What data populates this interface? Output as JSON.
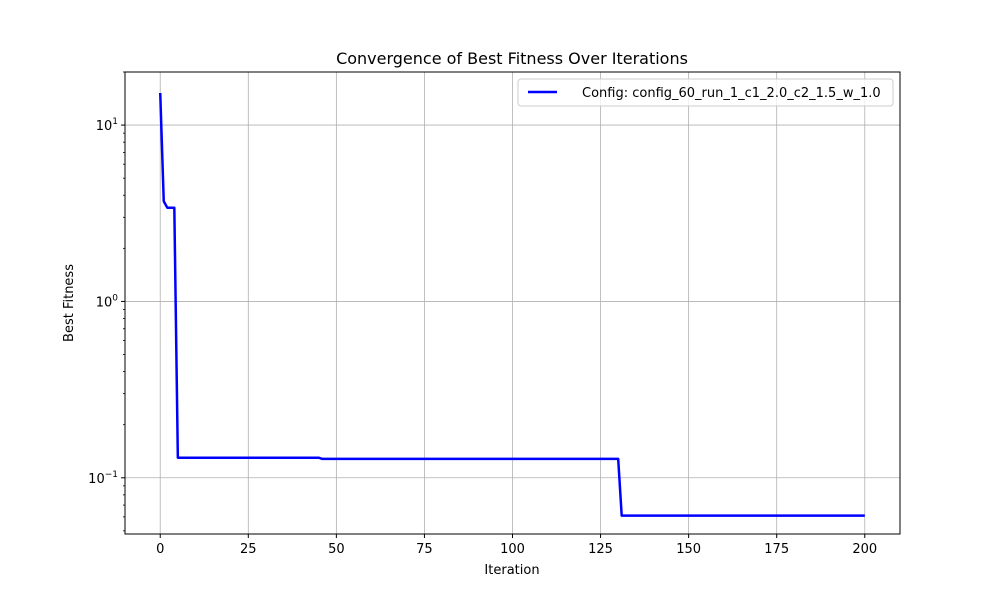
{
  "chart_data": {
    "type": "line",
    "title": "Convergence of Best Fitness Over Iterations",
    "xlabel": "Iteration",
    "ylabel": "Best Fitness",
    "xlim": [
      -10,
      210
    ],
    "ylim": [
      0.048,
      20
    ],
    "yscale": "log",
    "x_ticks": [
      0,
      25,
      50,
      75,
      100,
      125,
      150,
      175,
      200
    ],
    "x_tick_labels": [
      "0",
      "25",
      "50",
      "75",
      "100",
      "125",
      "150",
      "175",
      "200"
    ],
    "y_major_ticks": [
      0.1,
      1,
      10
    ],
    "y_tick_labels": [
      {
        "base": "10",
        "exp": "−1"
      },
      {
        "base": "10",
        "exp": "0"
      },
      {
        "base": "10",
        "exp": "1"
      }
    ],
    "grid": true,
    "legend_position": "top-right",
    "series": [
      {
        "name": "Config: config_60_run_1_c1_2.0_c2_1.5_w_1.0",
        "color": "#0000ff",
        "points": [
          [
            0,
            15.2
          ],
          [
            1,
            3.7
          ],
          [
            2,
            3.4
          ],
          [
            3,
            3.4
          ],
          [
            4,
            3.4
          ],
          [
            5,
            0.13
          ],
          [
            10,
            0.13
          ],
          [
            20,
            0.13
          ],
          [
            30,
            0.13
          ],
          [
            40,
            0.13
          ],
          [
            45,
            0.13
          ],
          [
            46,
            0.128
          ],
          [
            60,
            0.128
          ],
          [
            80,
            0.128
          ],
          [
            100,
            0.128
          ],
          [
            120,
            0.128
          ],
          [
            130,
            0.128
          ],
          [
            131,
            0.061
          ],
          [
            150,
            0.061
          ],
          [
            175,
            0.061
          ],
          [
            200,
            0.061
          ]
        ]
      }
    ]
  }
}
